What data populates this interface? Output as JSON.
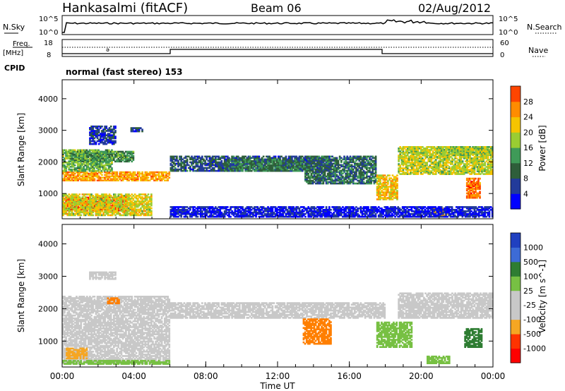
{
  "header": {
    "station": "Hankasalmi (fitACF)",
    "beam": "Beam 06",
    "date": "02/Aug/2012"
  },
  "summary_panel": {
    "nsky_label": "N.Sky",
    "nsky_ticks": [
      "10^5",
      "10^0"
    ],
    "nsearch_label": "N.Search",
    "freq_label_1": "Freq.",
    "freq_label_2": "[MHz]",
    "freq_ticks": [
      "18",
      "8"
    ],
    "nave_label": "Nave",
    "nave_ticks": [
      "60",
      "0"
    ],
    "cpid_label": "CPID",
    "cpid_text": "normal (fast stereo) 153"
  },
  "colors": {
    "power_scale": [
      "#0000ff",
      "#223b9a",
      "#2e5e3a",
      "#3f9a58",
      "#9acd32",
      "#f5c400",
      "#ff8c00",
      "#ff4500",
      "#ff0000"
    ],
    "velocity_scale": [
      "#2040c0",
      "#3d6bd6",
      "#2e7d32",
      "#77c043",
      "#c8c8c8",
      "#c8c8c8",
      "#f5a623",
      "#ff7f00",
      "#ff3300",
      "#ff0000"
    ]
  },
  "chart_data": [
    {
      "type": "heatmap",
      "name": "power",
      "xlabel": "",
      "ylabel": "Slant Range [km]",
      "ylim": [
        200,
        4600
      ],
      "yticks": [
        "1000",
        "2000",
        "3000",
        "4000"
      ],
      "colorbar_label": "Power [dB]",
      "colorbar_ticks": [
        "4",
        "8",
        "12",
        "16",
        "20",
        "24",
        "28"
      ],
      "colorbar_range": [
        0,
        32
      ],
      "bands": [
        {
          "t0": 0.0,
          "t1": 3.6,
          "r0": 450,
          "r1": 900,
          "v": 30
        },
        {
          "t0": 0.0,
          "t1": 5.0,
          "r0": 300,
          "r1": 1000,
          "v": 18
        },
        {
          "t0": 0.0,
          "t1": 6.0,
          "r0": 1400,
          "r1": 1700,
          "v": 22
        },
        {
          "t0": 0.0,
          "t1": 2.8,
          "r0": 1700,
          "r1": 2400,
          "v": 14
        },
        {
          "t0": 0.4,
          "t1": 4.0,
          "r0": 2000,
          "r1": 2350,
          "v": 12
        },
        {
          "t0": 1.5,
          "t1": 3.0,
          "r0": 2550,
          "r1": 3150,
          "v": 5
        },
        {
          "t0": 3.8,
          "t1": 4.5,
          "r0": 2950,
          "r1": 3100,
          "v": 6
        },
        {
          "t0": 6.0,
          "t1": 15.0,
          "r0": 1700,
          "r1": 2200,
          "v": 7
        },
        {
          "t0": 9.0,
          "t1": 13.5,
          "r0": 1700,
          "r1": 2100,
          "v": 10
        },
        {
          "t0": 13.5,
          "t1": 17.5,
          "r0": 1300,
          "r1": 2200,
          "v": 9
        },
        {
          "t0": 17.5,
          "t1": 18.7,
          "r0": 800,
          "r1": 1600,
          "v": 20
        },
        {
          "t0": 18.7,
          "t1": 24.0,
          "r0": 1600,
          "r1": 2500,
          "v": 17
        },
        {
          "t0": 21.0,
          "t1": 24.0,
          "r0": 2200,
          "r1": 2500,
          "v": 16
        },
        {
          "t0": 22.5,
          "t1": 23.3,
          "r0": 850,
          "r1": 1500,
          "v": 25
        },
        {
          "t0": 20.5,
          "t1": 21.5,
          "r0": 300,
          "r1": 550,
          "v": 22
        },
        {
          "t0": 6.0,
          "t1": 24.0,
          "r0": 250,
          "r1": 600,
          "v": 3
        }
      ]
    },
    {
      "type": "heatmap",
      "name": "velocity",
      "xlabel": "Time UT",
      "ylabel": "Slant Range [km]",
      "ylim": [
        200,
        4600
      ],
      "yticks": [
        "1000",
        "2000",
        "3000",
        "4000"
      ],
      "xticks": [
        "00:00",
        "04:00",
        "08:00",
        "12:00",
        "16:00",
        "20:00",
        "00:00"
      ],
      "xlim": [
        0,
        24
      ],
      "colorbar_label": "Velocity [m s^-1]",
      "colorbar_ticks": [
        "1000",
        "500",
        "100",
        "25",
        "-25",
        "-100",
        "-500",
        "-1000"
      ],
      "bands": [
        {
          "t0": 0.0,
          "t1": 6.0,
          "r0": 300,
          "r1": 2400,
          "v": 0
        },
        {
          "t0": 6.0,
          "t1": 18.0,
          "r0": 1700,
          "r1": 2200,
          "v": 0
        },
        {
          "t0": 1.5,
          "t1": 3.0,
          "r0": 2900,
          "r1": 3150,
          "v": 0
        },
        {
          "t0": 2.5,
          "t1": 3.2,
          "r0": 2150,
          "r1": 2350,
          "v": -150
        },
        {
          "t0": 0.2,
          "t1": 1.4,
          "r0": 450,
          "r1": 800,
          "v": -60
        },
        {
          "t0": 13.4,
          "t1": 15.0,
          "r0": 900,
          "r1": 1700,
          "v": -300
        },
        {
          "t0": 17.5,
          "t1": 19.5,
          "r0": 800,
          "r1": 1600,
          "v": 30
        },
        {
          "t0": 18.7,
          "t1": 24.0,
          "r0": 1700,
          "r1": 2500,
          "v": 0
        },
        {
          "t0": 22.4,
          "t1": 23.4,
          "r0": 800,
          "r1": 1400,
          "v": 150
        },
        {
          "t0": 20.3,
          "t1": 21.6,
          "r0": 300,
          "r1": 550,
          "v": 60
        },
        {
          "t0": 0.0,
          "t1": 6.0,
          "r0": 280,
          "r1": 420,
          "v": 50
        }
      ]
    }
  ]
}
